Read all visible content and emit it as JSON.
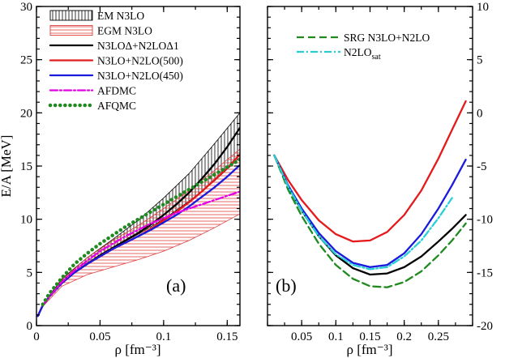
{
  "chart_data": [
    {
      "type": "line",
      "panel_label": "(a)",
      "xlabel": "ρ [fm⁻³]",
      "ylabel": "E/A [MeV]",
      "xlim": [
        0,
        0.16
      ],
      "ylim": [
        0,
        30
      ],
      "xticks": [
        0,
        0.05,
        0.1,
        0.15
      ],
      "xtick_labels": [
        "0",
        "0.05",
        "0.1",
        "0.15"
      ],
      "yticks": [
        0,
        5,
        10,
        15,
        20,
        25,
        30
      ],
      "ytick_labels": [
        "0",
        "5",
        "10",
        "15",
        "20",
        "25",
        "30"
      ],
      "y_axis_side": "left",
      "legend_position": "top-left",
      "bands": [
        {
          "name": "EM N3LO",
          "hatch": "vertical",
          "color": "#000000",
          "x": [
            0.005,
            0.02,
            0.04,
            0.06,
            0.08,
            0.1,
            0.12,
            0.14,
            0.16
          ],
          "lower": [
            1.9,
            4.2,
            5.9,
            7.3,
            8.6,
            10.0,
            11.7,
            13.6,
            15.8
          ],
          "upper": [
            2.0,
            4.4,
            6.4,
            8.1,
            9.9,
            12.0,
            14.3,
            17.1,
            20.0
          ]
        },
        {
          "name": "EGM N3LO",
          "hatch": "horizontal",
          "color": "#e04040",
          "x": [
            0.005,
            0.02,
            0.04,
            0.06,
            0.08,
            0.1,
            0.12,
            0.14,
            0.16
          ],
          "lower": [
            1.8,
            3.7,
            4.8,
            5.5,
            6.2,
            7.0,
            8.0,
            9.2,
            10.5
          ],
          "upper": [
            1.9,
            4.3,
            6.4,
            8.0,
            9.4,
            11.0,
            12.7,
            14.6,
            16.6
          ]
        }
      ],
      "series": [
        {
          "name": "N3LOΔ+N2LOΔ1",
          "color": "#000000",
          "style": "solid",
          "x": [
            0.001,
            0.005,
            0.01,
            0.02,
            0.03,
            0.04,
            0.05,
            0.06,
            0.07,
            0.08,
            0.09,
            0.1,
            0.11,
            0.12,
            0.13,
            0.14,
            0.15,
            0.16
          ],
          "y": [
            0.9,
            1.9,
            2.7,
            4.0,
            5.0,
            5.8,
            6.6,
            7.3,
            8.0,
            8.7,
            9.5,
            10.4,
            11.4,
            12.5,
            13.8,
            15.2,
            16.8,
            18.6
          ]
        },
        {
          "name": "N3LO+N2LO(500)",
          "color": "#e41a1c",
          "style": "solid",
          "x": [
            0.001,
            0.005,
            0.01,
            0.02,
            0.03,
            0.04,
            0.05,
            0.06,
            0.07,
            0.08,
            0.09,
            0.1,
            0.11,
            0.12,
            0.13,
            0.14,
            0.15,
            0.16
          ],
          "y": [
            0.9,
            1.9,
            2.7,
            4.0,
            5.0,
            5.8,
            6.5,
            7.2,
            7.8,
            8.4,
            9.1,
            9.9,
            10.7,
            11.6,
            12.6,
            13.7,
            14.8,
            16.1
          ]
        },
        {
          "name": "N3LO+N2LO(450)",
          "color": "#1a1adc",
          "style": "solid",
          "x": [
            0.001,
            0.005,
            0.01,
            0.02,
            0.03,
            0.04,
            0.05,
            0.06,
            0.07,
            0.08,
            0.09,
            0.1,
            0.11,
            0.12,
            0.13,
            0.14,
            0.15,
            0.16
          ],
          "y": [
            0.9,
            1.9,
            2.7,
            4.0,
            5.0,
            5.8,
            6.5,
            7.2,
            7.8,
            8.4,
            9.0,
            9.7,
            10.4,
            11.2,
            12.1,
            13.0,
            14.0,
            15.1
          ]
        },
        {
          "name": "AFDMC",
          "color": "#e600e6",
          "style": "dashdot",
          "x": [
            0.005,
            0.01,
            0.02,
            0.03,
            0.04,
            0.05,
            0.06,
            0.07,
            0.08,
            0.09,
            0.1,
            0.11,
            0.12,
            0.13,
            0.14,
            0.15,
            0.16
          ],
          "y": [
            1.9,
            2.7,
            4.1,
            5.2,
            6.1,
            7.0,
            7.7,
            8.4,
            9.0,
            9.6,
            10.1,
            10.6,
            11.0,
            11.4,
            11.8,
            12.2,
            12.6
          ]
        },
        {
          "name": "AFQMC",
          "color": "#1f8a1f",
          "style": "dotted",
          "x": [
            0.005,
            0.01,
            0.02,
            0.03,
            0.04,
            0.05,
            0.06,
            0.07,
            0.08,
            0.09,
            0.1,
            0.11,
            0.12,
            0.13,
            0.14,
            0.15,
            0.16
          ],
          "y": [
            2.0,
            3.0,
            4.5,
            5.8,
            6.8,
            7.7,
            8.5,
            9.3,
            10.0,
            10.7,
            11.4,
            12.1,
            12.8,
            13.5,
            14.2,
            14.9,
            15.6
          ]
        }
      ]
    },
    {
      "type": "line",
      "panel_label": "(b)",
      "xlabel": "ρ [fm⁻³]",
      "ylabel": "",
      "xlim": [
        0,
        0.3
      ],
      "ylim": [
        -20,
        10
      ],
      "xticks": [
        0.05,
        0.1,
        0.15,
        0.2,
        0.25
      ],
      "xtick_labels": [
        "0.05",
        "0.1",
        "0.15",
        "0.2",
        "0.25"
      ],
      "yticks": [
        -20,
        -15,
        -10,
        -5,
        0,
        5,
        10
      ],
      "ytick_labels": [
        "-20",
        "-15",
        "-10",
        "-5",
        "0",
        "5",
        "10"
      ],
      "y_axis_side": "right",
      "legend_position": "top-right",
      "series": [
        {
          "name": "N3LOΔ+N2LOΔ1",
          "color": "#000000",
          "style": "solid",
          "show_in_legend": false,
          "x": [
            0.01,
            0.03,
            0.05,
            0.075,
            0.1,
            0.125,
            0.15,
            0.175,
            0.2,
            0.225,
            0.25,
            0.27,
            0.29
          ],
          "y": [
            -4.0,
            -6.9,
            -9.2,
            -11.6,
            -13.4,
            -14.6,
            -15.2,
            -15.1,
            -14.5,
            -13.5,
            -12.1,
            -10.9,
            -9.6
          ]
        },
        {
          "name": "N3LO+N2LO(500)",
          "color": "#e41a1c",
          "style": "solid",
          "show_in_legend": false,
          "x": [
            0.01,
            0.03,
            0.05,
            0.075,
            0.1,
            0.125,
            0.15,
            0.175,
            0.2,
            0.225,
            0.25,
            0.27,
            0.29
          ],
          "y": [
            -4.0,
            -6.3,
            -8.2,
            -10.1,
            -11.4,
            -12.1,
            -12.0,
            -11.2,
            -9.6,
            -7.3,
            -4.3,
            -1.6,
            1.1
          ]
        },
        {
          "name": "N3LO+N2LO(450)",
          "color": "#1a1adc",
          "style": "solid",
          "show_in_legend": false,
          "x": [
            0.01,
            0.03,
            0.05,
            0.075,
            0.1,
            0.125,
            0.15,
            0.175,
            0.2,
            0.225,
            0.25,
            0.27,
            0.29
          ],
          "y": [
            -4.0,
            -6.8,
            -9.0,
            -11.3,
            -13.0,
            -14.1,
            -14.5,
            -14.3,
            -13.2,
            -11.4,
            -9.0,
            -6.8,
            -4.4
          ]
        },
        {
          "name": "SRG N3LO+N2LO",
          "color": "#1f8a1f",
          "style": "dashed",
          "show_in_legend": true,
          "x": [
            0.01,
            0.03,
            0.05,
            0.075,
            0.1,
            0.125,
            0.15,
            0.175,
            0.2,
            0.225,
            0.25,
            0.27,
            0.29
          ],
          "y": [
            -4.0,
            -7.2,
            -9.7,
            -12.3,
            -14.3,
            -15.6,
            -16.3,
            -16.4,
            -15.9,
            -14.9,
            -13.4,
            -12.0,
            -10.4
          ]
        },
        {
          "name": "N2LOsat",
          "color": "#26cfd6",
          "style": "dashdot",
          "show_in_legend": true,
          "x": [
            0.01,
            0.03,
            0.05,
            0.075,
            0.1,
            0.125,
            0.15,
            0.175,
            0.2,
            0.225,
            0.25,
            0.27
          ],
          "y": [
            -4.0,
            -6.9,
            -9.2,
            -11.6,
            -13.3,
            -14.3,
            -14.7,
            -14.5,
            -13.5,
            -12.0,
            -9.9,
            -8.0
          ]
        }
      ]
    }
  ],
  "legend_b_labels": {
    "srg": "SRG N3LO+N2LO",
    "sat_main": "N2LO",
    "sat_sub": "sat"
  }
}
